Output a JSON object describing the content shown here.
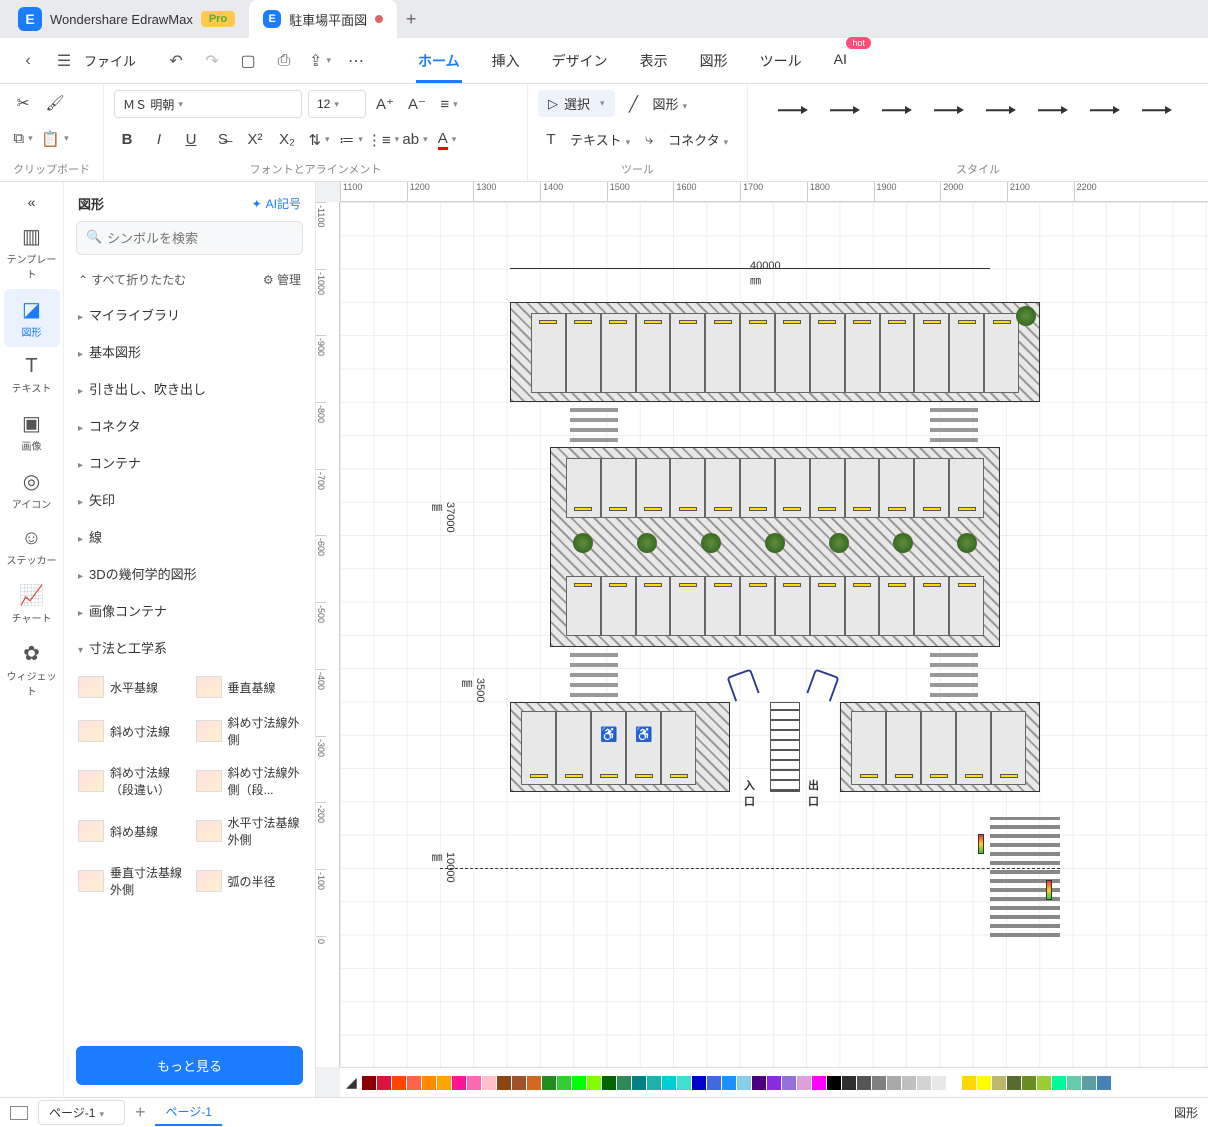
{
  "app": {
    "name": "Wondershare EdrawMax",
    "pro": "Pro"
  },
  "doc": {
    "title": "駐車場平面図",
    "modified": true
  },
  "file_menu": "ファイル",
  "menu": {
    "tabs": [
      "ホーム",
      "挿入",
      "デザイン",
      "表示",
      "図形",
      "ツール",
      "AI"
    ],
    "active": "ホーム",
    "hot": "hot"
  },
  "ribbon": {
    "clipboard": "クリップボード",
    "font_align": "フォントとアラインメント",
    "tools": "ツール",
    "style": "スタイル",
    "font": "ＭＳ 明朝",
    "size": "12",
    "select": "選択",
    "shape": "図形",
    "text": "テキスト",
    "connector": "コネクタ"
  },
  "rail": {
    "items": [
      {
        "ic": "▥",
        "label": "テンプレート"
      },
      {
        "ic": "◪",
        "label": "図形"
      },
      {
        "ic": "T",
        "label": "テキスト"
      },
      {
        "ic": "▣",
        "label": "画像"
      },
      {
        "ic": "◎",
        "label": "アイコン"
      },
      {
        "ic": "☺",
        "label": "ステッカー"
      },
      {
        "ic": "📈",
        "label": "チャート"
      },
      {
        "ic": "✿",
        "label": "ウィジェット"
      }
    ],
    "active": 1
  },
  "shapes": {
    "title": "図形",
    "ai": "AI記号",
    "search_ph": "シンボルを検索",
    "fold": "すべて折りたたむ",
    "manage": "管理",
    "cats": [
      "マイライブラリ",
      "基本図形",
      "引き出し、吹き出し",
      "コネクタ",
      "コンテナ",
      "矢印",
      "線",
      "3Dの幾何学的図形",
      "画像コンテナ",
      "寸法と工学系"
    ],
    "dim_items": [
      "水平基線",
      "垂直基線",
      "斜め寸法線",
      "斜め寸法線外側",
      "斜め寸法線（段違い）",
      "斜め寸法線外側（段...",
      "斜め基線",
      "水平寸法基線外側",
      "垂直寸法基線外側",
      "弧の半径"
    ],
    "more": "もっと見る"
  },
  "ruler_h": [
    "1100",
    "1200",
    "1300",
    "1400",
    "1500",
    "1600",
    "1700",
    "1800",
    "1900",
    "2000",
    "2100",
    "2200"
  ],
  "ruler_v": [
    "-1100",
    "-1000",
    "-900",
    "-800",
    "-700",
    "-600",
    "-500",
    "-400",
    "-300",
    "-200",
    "-100",
    "0"
  ],
  "dims": {
    "w": "40000 ㎜",
    "h": "37000 ㎜",
    "gap": "3500 ㎜",
    "road": "10000 ㎜"
  },
  "labels": {
    "in": "入口",
    "out": "出口"
  },
  "palette": [
    "#8b0000",
    "#dc143c",
    "#ff4500",
    "#ff6347",
    "#ff8c00",
    "#ffa500",
    "#ff1493",
    "#ff69b4",
    "#ffc0cb",
    "#8b4513",
    "#a0522d",
    "#d2691e",
    "#228b22",
    "#32cd32",
    "#00ff00",
    "#7fff00",
    "#006400",
    "#2e8b57",
    "#008080",
    "#20b2aa",
    "#00ced1",
    "#40e0d0",
    "#0000cd",
    "#4169e1",
    "#1e90ff",
    "#87ceeb",
    "#4b0082",
    "#8a2be2",
    "#9370db",
    "#dda0dd",
    "#ff00ff",
    "#000000",
    "#2f2f2f",
    "#555555",
    "#808080",
    "#a9a9a9",
    "#c0c0c0",
    "#d3d3d3",
    "#e8e8e8",
    "#ffffff",
    "#ffd700",
    "#ffff00",
    "#bdb76b",
    "#556b2f",
    "#6b8e23",
    "#9acd32",
    "#00fa9a",
    "#66cdaa",
    "#5f9ea0",
    "#4682b4"
  ],
  "status": {
    "page_sel": "ページ-1",
    "page_tab": "ページ-1",
    "right": "図形"
  },
  "colors": {
    "accent": "#1a7cff"
  }
}
